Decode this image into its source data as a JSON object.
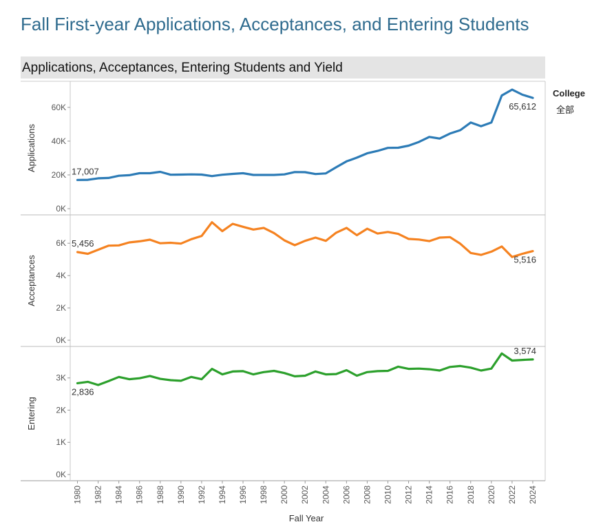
{
  "page_title": "Fall First-year Applications, Acceptances, and Entering Students",
  "section_title": "Applications, Acceptances, Entering Students and Yield",
  "legend": {
    "title": "College",
    "item": "全部"
  },
  "colors": {
    "applications": "#2c7bb6",
    "acceptances": "#f58220",
    "entering": "#2ca02c",
    "grid": "#c8c8c8",
    "axis_text": "#555555"
  },
  "chart_data": {
    "type": "line",
    "xlabel": "Fall Year",
    "x": [
      1980,
      1981,
      1982,
      1983,
      1984,
      1985,
      1986,
      1987,
      1988,
      1989,
      1990,
      1991,
      1992,
      1993,
      1994,
      1995,
      1996,
      1997,
      1998,
      1999,
      2000,
      2001,
      2002,
      2003,
      2004,
      2005,
      2006,
      2007,
      2008,
      2009,
      2010,
      2011,
      2012,
      2013,
      2014,
      2015,
      2016,
      2017,
      2018,
      2019,
      2020,
      2021,
      2022,
      2023,
      2024
    ],
    "x_tick_labels": [
      "1980",
      "1982",
      "1984",
      "1986",
      "1988",
      "1990",
      "1992",
      "1994",
      "1996",
      "1998",
      "2000",
      "2002",
      "2004",
      "2006",
      "2008",
      "2010",
      "2012",
      "2014",
      "2016",
      "2018",
      "2020",
      "2022",
      "2024"
    ],
    "panels": [
      {
        "key": "applications",
        "ylabel": "Applications",
        "ylim": [
          0,
          73000
        ],
        "y_ticks": [
          0,
          20000,
          40000,
          60000
        ],
        "y_tick_labels": [
          "0K",
          "20K",
          "40K",
          "60K"
        ],
        "series": [
          {
            "values": [
              17007,
              17100,
              18000,
              18200,
              19500,
              19800,
              21000,
              21000,
              21800,
              20100,
              20200,
              20300,
              20200,
              19300,
              20100,
              20600,
              21000,
              20000,
              20000,
              20000,
              20300,
              21700,
              21600,
              20500,
              20900,
              24500,
              28000,
              30200,
              32800,
              34200,
              36000,
              36100,
              37300,
              39500,
              42500,
              41500,
              44500,
              46500,
              51000,
              48800,
              51000,
              67000,
              70500,
              67500,
              65612
            ]
          }
        ],
        "labels": [
          {
            "index": 0,
            "text": "17,007"
          },
          {
            "index": 44,
            "text": "65,612"
          }
        ]
      },
      {
        "key": "acceptances",
        "ylabel": "Acceptances",
        "ylim": [
          0,
          7500
        ],
        "y_ticks": [
          0,
          2000,
          4000,
          6000
        ],
        "y_tick_labels": [
          "0K",
          "2K",
          "4K",
          "6K"
        ],
        "series": [
          {
            "values": [
              5456,
              5350,
              5600,
              5850,
              5870,
              6050,
              6120,
              6220,
              6000,
              6030,
              5980,
              6250,
              6450,
              7300,
              6750,
              7200,
              7020,
              6850,
              6950,
              6630,
              6180,
              5880,
              6150,
              6350,
              6150,
              6650,
              6950,
              6500,
              6900,
              6600,
              6700,
              6580,
              6270,
              6230,
              6130,
              6350,
              6380,
              5970,
              5400,
              5280,
              5480,
              5800,
              5150,
              5350,
              5516
            ]
          }
        ],
        "labels": [
          {
            "index": 0,
            "text": "5,456"
          },
          {
            "index": 44,
            "text": "5,516"
          }
        ]
      },
      {
        "key": "entering",
        "ylabel": "Entering",
        "ylim": [
          0,
          3850
        ],
        "y_ticks": [
          0,
          1000,
          2000,
          3000
        ],
        "y_tick_labels": [
          "0K",
          "1K",
          "2K",
          "3K"
        ],
        "series": [
          {
            "values": [
              2836,
              2880,
              2780,
              2900,
              3030,
              2960,
              2990,
              3060,
              2970,
              2930,
              2910,
              3030,
              2960,
              3280,
              3110,
              3200,
              3210,
              3110,
              3180,
              3220,
              3150,
              3050,
              3070,
              3200,
              3110,
              3120,
              3240,
              3070,
              3180,
              3210,
              3220,
              3350,
              3280,
              3290,
              3270,
              3230,
              3340,
              3370,
              3320,
              3230,
              3290,
              3760,
              3540,
              3560,
              3574
            ]
          }
        ],
        "labels": [
          {
            "index": 0,
            "text": "2,836"
          },
          {
            "index": 44,
            "text": "3,574"
          }
        ]
      }
    ]
  }
}
